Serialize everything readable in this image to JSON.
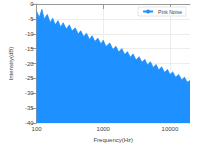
{
  "chart_data": {
    "type": "area",
    "x_label": "Frequency(Hz)",
    "y_label": "Intensity(dB)",
    "log": "x",
    "grid": true,
    "legend": "top-right",
    "xlim": [
      100,
      20000
    ],
    "xticks": [
      100,
      1000,
      10000
    ],
    "ylim": [
      -40,
      0
    ],
    "yticks": [
      -40,
      -35,
      -30,
      -25,
      -20,
      -15,
      -10,
      -5,
      0
    ],
    "series": [
      {
        "name": "Pink Noise",
        "color": "#1e90ff",
        "x": [
          100,
          110,
          120,
          130,
          145,
          160,
          175,
          190,
          210,
          230,
          250,
          280,
          310,
          340,
          380,
          420,
          460,
          510,
          560,
          620,
          680,
          750,
          830,
          920,
          1000,
          1100,
          1250,
          1400,
          1550,
          1700,
          1900,
          2100,
          2300,
          2550,
          2800,
          3100,
          3450,
          3800,
          4200,
          4600,
          5100,
          5600,
          6200,
          6800,
          7500,
          8300,
          9200,
          10000,
          11000,
          12200,
          13500,
          15000,
          16500,
          18200,
          20000
        ],
        "values": [
          -2.5,
          -4.5,
          -1.8,
          -5.0,
          -3.5,
          -6.2,
          -4.8,
          -7.0,
          -5.6,
          -7.8,
          -6.3,
          -8.4,
          -7.0,
          -9.1,
          -8.0,
          -10.1,
          -9.0,
          -11.0,
          -9.8,
          -11.9,
          -10.7,
          -12.6,
          -11.5,
          -13.4,
          -12.2,
          -14.3,
          -13.1,
          -15.3,
          -14.2,
          -16.1,
          -15.0,
          -17.0,
          -16.0,
          -17.9,
          -16.8,
          -18.8,
          -17.7,
          -19.6,
          -18.6,
          -20.5,
          -19.4,
          -21.3,
          -20.3,
          -22.2,
          -21.1,
          -23.0,
          -22.0,
          -23.7,
          -22.8,
          -24.6,
          -23.7,
          -25.5,
          -24.6,
          -26.3,
          -25.7
        ]
      }
    ]
  }
}
